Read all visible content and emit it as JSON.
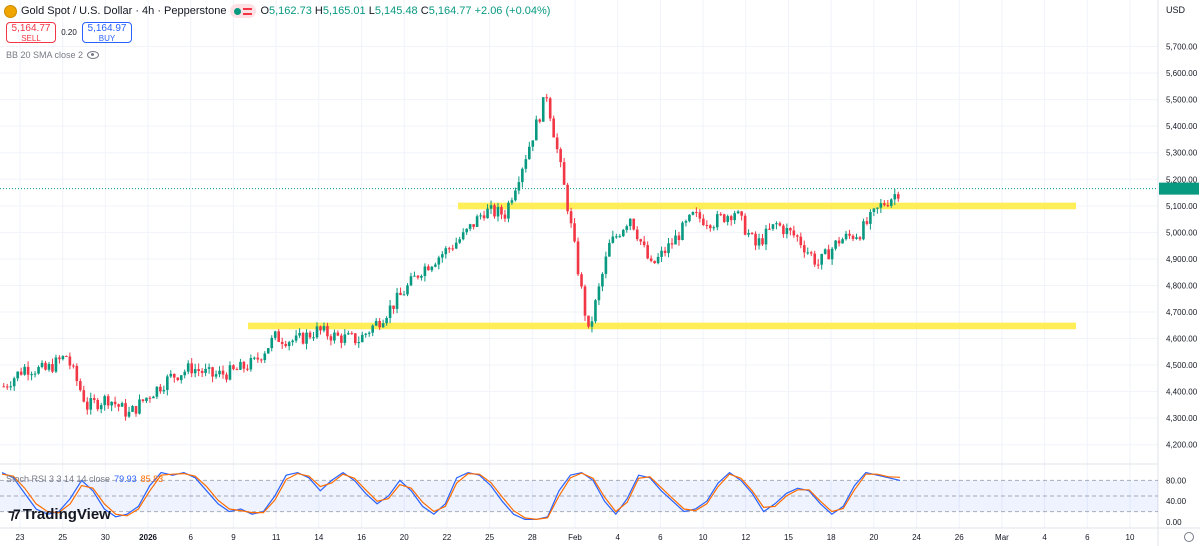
{
  "header": {
    "title": "Gold Spot / U.S. Dollar · 4h · Pepperstone",
    "ohlc_o_label": "O",
    "ohlc_o": "5,162.73",
    "ohlc_h_label": "H",
    "ohlc_h": "5,165.01",
    "ohlc_l_label": "L",
    "ohlc_l": "5,145.48",
    "ohlc_c_label": "C",
    "ohlc_c": "5,164.77",
    "change": "+2.06 (+0.04%)"
  },
  "trade": {
    "sell_price": "5,164.77",
    "sell_label": "SELL",
    "spread": "0.20",
    "buy_price": "5,164.97",
    "buy_label": "BUY"
  },
  "indicators": {
    "bb": "BB 20 SMA close 2",
    "rsi_name": "Stoch RSI 3 3 14 14 close",
    "rsi_k": "79.93",
    "rsi_d": "85.83"
  },
  "currency": "USD",
  "brand": "TradingView",
  "colors": {
    "up": "#089981",
    "down": "#f23645",
    "highlight": "#ffeb3b",
    "rsi_k": "#2962ff",
    "rsi_d": "#ff6d00"
  },
  "chart_data": [
    {
      "type": "candlestick",
      "symbol": "Gold Spot / U.S. Dollar",
      "interval": "4h",
      "ylim": [
        4150,
        5800
      ],
      "y_ticks": [
        "5,700.00",
        "5,600.00",
        "5,500.00",
        "5,400.00",
        "5,300.00",
        "5,200.00",
        "5,100.00",
        "5,000.00",
        "4,900.00",
        "4,800.00",
        "4,700.00",
        "4,600.00",
        "4,500.00",
        "4,400.00",
        "4,300.00",
        "4,200.00"
      ],
      "y_tick_values": [
        5700,
        5600,
        5500,
        5400,
        5300,
        5200,
        5100,
        5000,
        4900,
        4800,
        4700,
        4600,
        4500,
        4400,
        4300,
        4200
      ],
      "x_ticks": [
        "23",
        "25",
        "30",
        "2026",
        "6",
        "9",
        "11",
        "14",
        "16",
        "20",
        "22",
        "25",
        "28",
        "Feb",
        "4",
        "6",
        "10",
        "12",
        "15",
        "18",
        "20",
        "24",
        "26",
        "Mar",
        "4",
        "6",
        "10"
      ],
      "last_price": 5164.77,
      "close_path": [
        {
          "label": "Dec 22",
          "v": 4420
        },
        {
          "label": "Dec 23",
          "v": 4490
        },
        {
          "label": "Dec 24",
          "v": 4480
        },
        {
          "label": "Dec 26",
          "v": 4535
        },
        {
          "label": "Dec 29",
          "v": 4345
        },
        {
          "label": "Dec 30",
          "v": 4375
        },
        {
          "label": "Dec 31",
          "v": 4315
        },
        {
          "label": "Jan 2",
          "v": 4390
        },
        {
          "label": "Jan 5",
          "v": 4455
        },
        {
          "label": "Jan 6",
          "v": 4490
        },
        {
          "label": "Jan 7",
          "v": 4460
        },
        {
          "label": "Jan 8",
          "v": 4475
        },
        {
          "label": "Jan 9",
          "v": 4510
        },
        {
          "label": "Jan 12",
          "v": 4605
        },
        {
          "label": "Jan 13",
          "v": 4590
        },
        {
          "label": "Jan 14",
          "v": 4630
        },
        {
          "label": "Jan 15",
          "v": 4605
        },
        {
          "label": "Jan 16",
          "v": 4595
        },
        {
          "label": "Jan 19",
          "v": 4670
        },
        {
          "label": "Jan 20",
          "v": 4760
        },
        {
          "label": "Jan 21",
          "v": 4860
        },
        {
          "label": "Jan 22",
          "v": 4920
        },
        {
          "label": "Jan 23",
          "v": 4985
        },
        {
          "label": "Jan 26",
          "v": 5080
        },
        {
          "label": "Jan 27",
          "v": 5070
        },
        {
          "label": "Jan 28",
          "v": 5290
        },
        {
          "label": "Jan 29",
          "v": 5520
        },
        {
          "label": "Jan 30",
          "v": 5100
        },
        {
          "label": "Feb 2",
          "v": 4620
        },
        {
          "label": "Feb 3",
          "v": 4950
        },
        {
          "label": "Feb 4",
          "v": 5060
        },
        {
          "label": "Feb 5",
          "v": 4870
        },
        {
          "label": "Feb 6",
          "v": 4960
        },
        {
          "label": "Feb 9",
          "v": 5060
        },
        {
          "label": "Feb 10",
          "v": 5040
        },
        {
          "label": "Feb 11",
          "v": 5080
        },
        {
          "label": "Feb 12",
          "v": 4950
        },
        {
          "label": "Feb 13",
          "v": 5030
        },
        {
          "label": "Feb 16",
          "v": 4980
        },
        {
          "label": "Feb 17",
          "v": 4880
        },
        {
          "label": "Feb 18",
          "v": 4970
        },
        {
          "label": "Feb 19",
          "v": 5000
        },
        {
          "label": "Feb 20",
          "v": 5100
        },
        {
          "label": "Feb 23",
          "v": 5165
        }
      ],
      "support_resistance_zones": [
        {
          "low": 4635,
          "high": 4660
        },
        {
          "low": 5087,
          "high": 5112
        }
      ]
    },
    {
      "type": "line",
      "indicator": "Stoch RSI 3 3 14 14 close",
      "ylim": [
        0,
        100
      ],
      "y_ticks": [
        "80.00",
        "40.00",
        "0.00"
      ],
      "y_tick_values": [
        80,
        40,
        0
      ],
      "band": [
        20,
        80
      ],
      "series": [
        {
          "name": "K",
          "last": 79.93,
          "values": [
            95,
            85,
            55,
            25,
            15,
            20,
            45,
            80,
            60,
            25,
            10,
            15,
            30,
            70,
            95,
            90,
            95,
            85,
            60,
            35,
            20,
            25,
            15,
            20,
            50,
            90,
            95,
            85,
            60,
            80,
            95,
            80,
            55,
            35,
            50,
            80,
            60,
            30,
            15,
            35,
            85,
            95,
            90,
            70,
            40,
            15,
            5,
            5,
            10,
            60,
            90,
            95,
            80,
            40,
            15,
            45,
            90,
            85,
            60,
            40,
            20,
            25,
            40,
            75,
            95,
            80,
            55,
            20,
            35,
            55,
            65,
            60,
            35,
            15,
            30,
            70,
            95,
            90,
            85,
            80
          ]
        },
        {
          "name": "D",
          "last": 85.83,
          "values": [
            92,
            88,
            65,
            35,
            20,
            18,
            35,
            70,
            65,
            35,
            15,
            12,
            25,
            60,
            90,
            92,
            93,
            88,
            68,
            42,
            25,
            22,
            18,
            18,
            42,
            82,
            93,
            88,
            68,
            75,
            92,
            84,
            62,
            40,
            45,
            72,
            65,
            38,
            20,
            30,
            75,
            93,
            92,
            76,
            48,
            22,
            8,
            5,
            8,
            50,
            85,
            94,
            84,
            48,
            20,
            38,
            84,
            87,
            66,
            45,
            25,
            22,
            35,
            68,
            92,
            84,
            60,
            28,
            30,
            50,
            62,
            62,
            40,
            20,
            26,
            62,
            92,
            92,
            87,
            86
          ]
        }
      ]
    }
  ]
}
